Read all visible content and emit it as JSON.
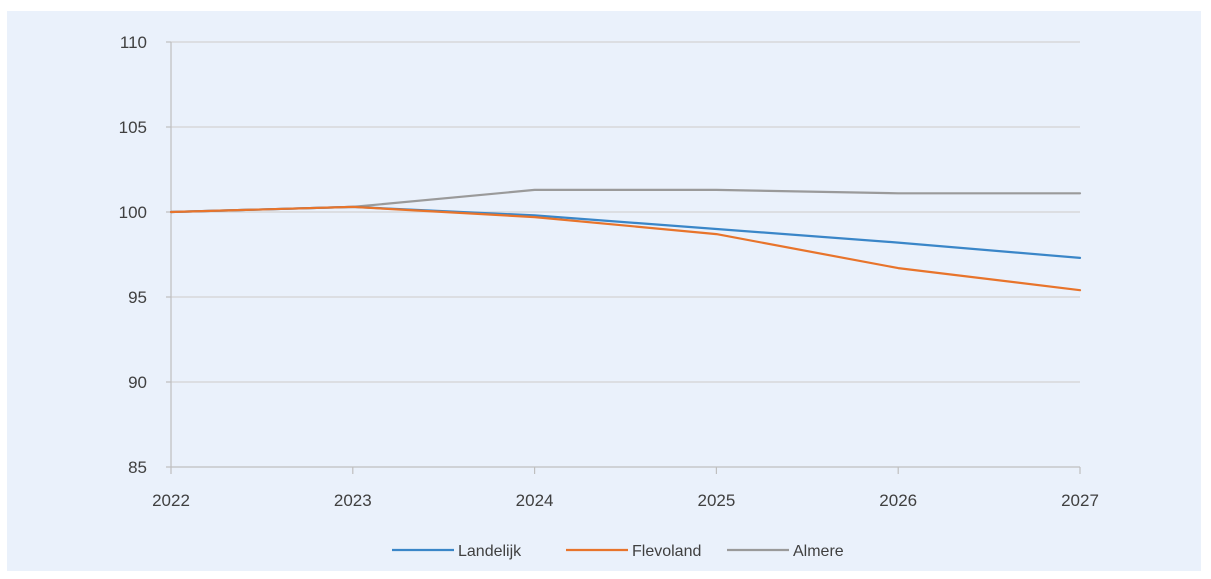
{
  "chart_data": {
    "type": "line",
    "title": "",
    "xlabel": "",
    "ylabel": "",
    "x": [
      2022,
      2023,
      2024,
      2025,
      2026,
      2027
    ],
    "x_tick_labels": [
      "2022",
      "2023",
      "2024",
      "2025",
      "2026",
      "2027"
    ],
    "ylim": [
      85,
      110
    ],
    "y_ticks": [
      85,
      90,
      95,
      100,
      105,
      110
    ],
    "y_tick_labels": [
      "85",
      "90",
      "95",
      "100",
      "105",
      "110"
    ],
    "grid": "horizontal",
    "legend_position": "bottom",
    "series": [
      {
        "name": "Landelijk",
        "color": "#3a86c8",
        "values": [
          100.0,
          100.3,
          99.8,
          99.0,
          98.2,
          97.3
        ]
      },
      {
        "name": "Flevoland",
        "color": "#e8742b",
        "values": [
          100.0,
          100.3,
          99.7,
          98.7,
          96.7,
          95.4
        ]
      },
      {
        "name": "Almere",
        "color": "#9a9a9a",
        "values": [
          100.0,
          100.3,
          101.3,
          101.3,
          101.1,
          101.1
        ]
      }
    ]
  }
}
